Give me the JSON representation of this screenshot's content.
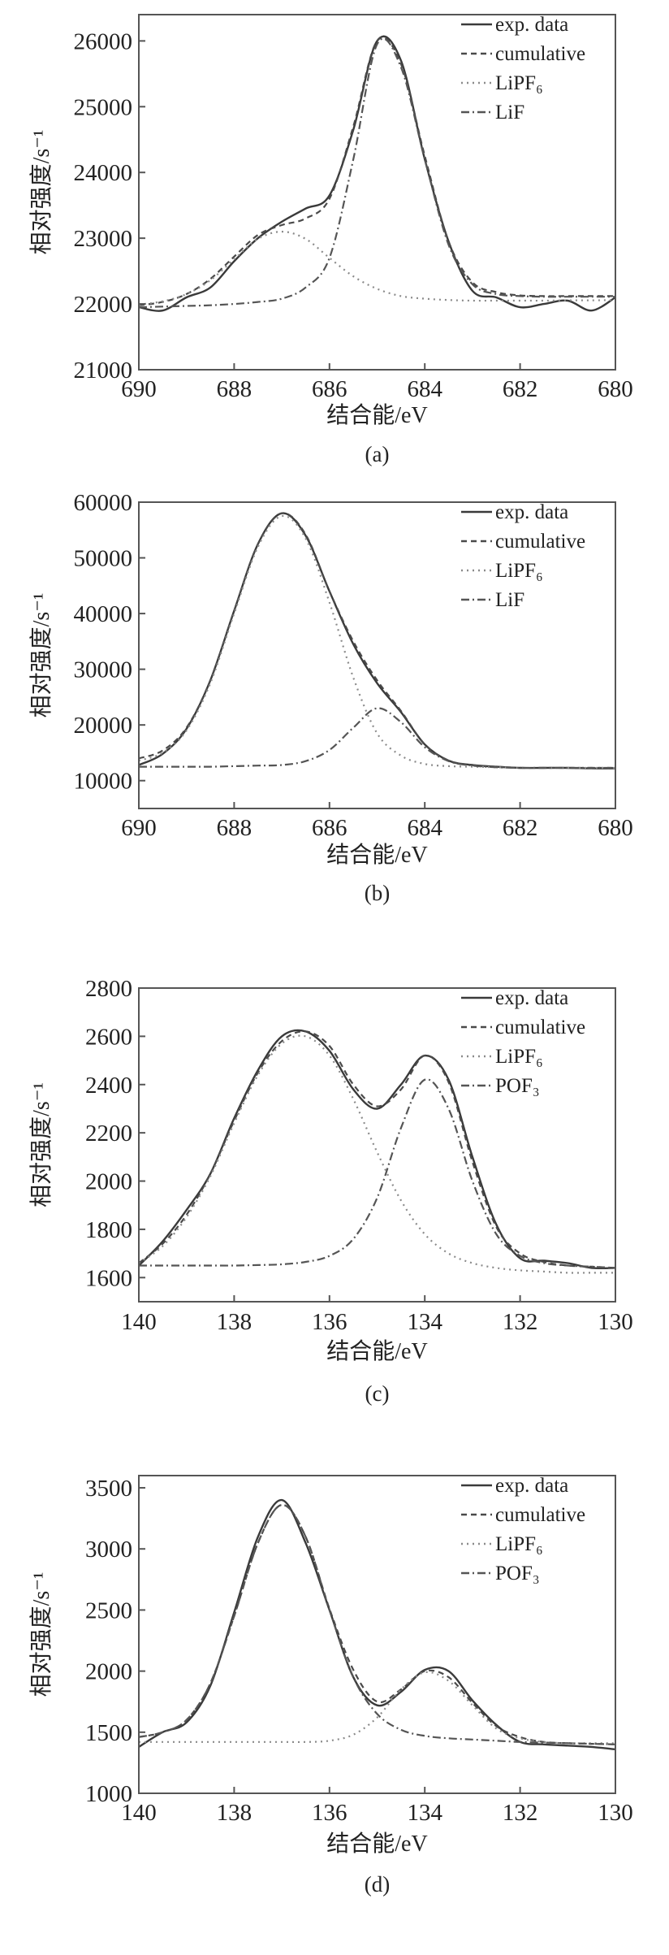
{
  "chart_data": [
    {
      "type": "line",
      "caption": "(a)",
      "xlabel": "结合能/eV",
      "ylabel": "相对强度/s⁻¹",
      "xlim": [
        690,
        680
      ],
      "ylim": [
        21000,
        26400
      ],
      "xticks": [
        690,
        688,
        686,
        684,
        682,
        680
      ],
      "yticks": [
        21000,
        22000,
        23000,
        24000,
        25000,
        26000
      ],
      "grid": false,
      "legend_position": "top-right",
      "x": [
        690,
        689.5,
        689,
        688.5,
        688,
        687.5,
        687,
        686.5,
        686,
        685.5,
        685,
        684.5,
        684,
        683.5,
        683,
        682.5,
        682,
        681.5,
        681,
        680.5,
        680
      ],
      "series": [
        {
          "name": "exp. data",
          "style": "solid",
          "values": [
            21950,
            21900,
            22100,
            22250,
            22650,
            23000,
            23250,
            23450,
            23650,
            24650,
            26000,
            25700,
            24200,
            22950,
            22200,
            22100,
            21950,
            22000,
            22050,
            21900,
            22100
          ]
        },
        {
          "name": "cumulative",
          "style": "dashed",
          "values": [
            21980,
            22030,
            22150,
            22380,
            22720,
            23050,
            23200,
            23300,
            23600,
            24700,
            26000,
            25650,
            24250,
            22950,
            22330,
            22180,
            22130,
            22120,
            22120,
            22120,
            22120
          ]
        },
        {
          "name": "LiPF₆",
          "style": "dotted",
          "values": [
            21990,
            22040,
            22150,
            22360,
            22680,
            22990,
            23100,
            22990,
            22700,
            22420,
            22230,
            22120,
            22080,
            22060,
            22050,
            22050,
            22050,
            22050,
            22055,
            22055,
            22060
          ]
        },
        {
          "name": "LiF",
          "style": "dashdot",
          "values": [
            21950,
            21960,
            21970,
            21980,
            22000,
            22030,
            22080,
            22250,
            22700,
            24200,
            25950,
            25600,
            24200,
            22900,
            22300,
            22150,
            22120,
            22110,
            22110,
            22110,
            22110
          ]
        }
      ]
    },
    {
      "type": "line",
      "caption": "(b)",
      "xlabel": "结合能/eV",
      "ylabel": "相对强度/s⁻¹",
      "xlim": [
        690,
        680
      ],
      "ylim": [
        5000,
        60000
      ],
      "xticks": [
        690,
        688,
        686,
        684,
        682,
        680
      ],
      "yticks": [
        10000,
        20000,
        30000,
        40000,
        50000,
        60000
      ],
      "grid": false,
      "legend_position": "top-right",
      "x": [
        690,
        689.5,
        689,
        688.5,
        688,
        687.5,
        687,
        686.5,
        686,
        685.5,
        685,
        684.5,
        684,
        683.5,
        683,
        682.5,
        682,
        681.5,
        681,
        680.5,
        680
      ],
      "series": [
        {
          "name": "exp. data",
          "style": "solid",
          "values": [
            12800,
            14800,
            19300,
            28000,
            40500,
            52500,
            58000,
            54000,
            44000,
            34500,
            27500,
            22300,
            16500,
            13600,
            12800,
            12500,
            12300,
            12300,
            12300,
            12200,
            12200
          ]
        },
        {
          "name": "cumulative",
          "style": "dashed",
          "values": [
            14000,
            15400,
            19500,
            28000,
            40500,
            52500,
            58000,
            54200,
            44000,
            35000,
            28000,
            22500,
            16500,
            13600,
            12800,
            12500,
            12300,
            12300,
            12300,
            12300,
            12300
          ]
        },
        {
          "name": "LiPF₆",
          "style": "dotted",
          "values": [
            13600,
            15000,
            19000,
            27500,
            40000,
            52000,
            57500,
            53500,
            42000,
            28500,
            18500,
            14500,
            13000,
            12600,
            12500,
            12400,
            12300,
            12300,
            12300,
            12300,
            12300
          ]
        },
        {
          "name": "LiF",
          "style": "dashdot",
          "values": [
            12500,
            12500,
            12500,
            12500,
            12600,
            12700,
            12800,
            13500,
            15500,
            19500,
            23000,
            20500,
            16000,
            13500,
            12700,
            12400,
            12300,
            12300,
            12300,
            12300,
            12300
          ]
        }
      ]
    },
    {
      "type": "line",
      "caption": "(c)",
      "xlabel": "结合能/eV",
      "ylabel": "相对强度/s⁻¹",
      "xlim": [
        140,
        130
      ],
      "ylim": [
        1500,
        2800
      ],
      "xticks": [
        140,
        138,
        136,
        134,
        132,
        130
      ],
      "yticks": [
        1600,
        1800,
        2000,
        2200,
        2400,
        2600,
        2800
      ],
      "grid": false,
      "legend_position": "top-right",
      "x": [
        140,
        139.5,
        139,
        138.5,
        138,
        137.5,
        137,
        136.5,
        136,
        135.5,
        135,
        134.5,
        134,
        133.5,
        133,
        132.5,
        132,
        131.5,
        131,
        130.5,
        130
      ],
      "series": [
        {
          "name": "exp. data",
          "style": "solid",
          "values": [
            1650,
            1750,
            1880,
            2030,
            2260,
            2460,
            2600,
            2620,
            2540,
            2380,
            2300,
            2400,
            2520,
            2420,
            2100,
            1820,
            1680,
            1670,
            1660,
            1640,
            1640
          ]
        },
        {
          "name": "cumulative",
          "style": "dashed",
          "values": [
            1660,
            1740,
            1860,
            2030,
            2250,
            2450,
            2580,
            2620,
            2560,
            2400,
            2310,
            2380,
            2520,
            2410,
            2080,
            1810,
            1700,
            1665,
            1650,
            1645,
            1640
          ]
        },
        {
          "name": "LiPF₆",
          "style": "dotted",
          "values": [
            1660,
            1730,
            1850,
            2020,
            2240,
            2440,
            2570,
            2600,
            2520,
            2340,
            2120,
            1920,
            1780,
            1700,
            1660,
            1640,
            1630,
            1625,
            1620,
            1620,
            1620
          ]
        },
        {
          "name": "POF₃",
          "style": "dashdot",
          "values": [
            1650,
            1650,
            1650,
            1650,
            1650,
            1652,
            1655,
            1665,
            1690,
            1760,
            1930,
            2220,
            2420,
            2300,
            2000,
            1780,
            1690,
            1660,
            1650,
            1645,
            1640
          ]
        }
      ]
    },
    {
      "type": "line",
      "caption": "(d)",
      "xlabel": "结合能/eV",
      "ylabel": "相对强度/s⁻¹",
      "xlim": [
        140,
        130
      ],
      "ylim": [
        1000,
        3600
      ],
      "xticks": [
        140,
        138,
        136,
        134,
        132,
        130
      ],
      "yticks": [
        1000,
        1500,
        2000,
        2500,
        3000,
        3500
      ],
      "grid": false,
      "legend_position": "top-right",
      "x": [
        140,
        139.5,
        139,
        138.5,
        138,
        137.5,
        137,
        136.5,
        136,
        135.5,
        135,
        134.5,
        134,
        133.5,
        133,
        132.5,
        132,
        131.5,
        131,
        130.5,
        130
      ],
      "series": [
        {
          "name": "exp. data",
          "style": "solid",
          "values": [
            1380,
            1500,
            1580,
            1880,
            2480,
            3100,
            3400,
            3050,
            2500,
            1950,
            1720,
            1830,
            2010,
            2000,
            1760,
            1560,
            1420,
            1400,
            1390,
            1380,
            1360
          ]
        },
        {
          "name": "cumulative",
          "style": "dashed",
          "values": [
            1460,
            1500,
            1600,
            1900,
            2450,
            3050,
            3360,
            3100,
            2510,
            2010,
            1750,
            1850,
            2000,
            1950,
            1740,
            1550,
            1460,
            1420,
            1410,
            1405,
            1400
          ]
        },
        {
          "name": "LiPF₆",
          "style": "dotted",
          "values": [
            1420,
            1420,
            1420,
            1420,
            1420,
            1420,
            1420,
            1420,
            1430,
            1480,
            1620,
            1850,
            1990,
            1920,
            1720,
            1530,
            1450,
            1420,
            1410,
            1410,
            1410
          ]
        },
        {
          "name": "POF₃",
          "style": "dashdot",
          "values": [
            1460,
            1500,
            1600,
            1900,
            2450,
            3050,
            3360,
            3100,
            2500,
            1950,
            1650,
            1520,
            1470,
            1450,
            1440,
            1430,
            1420,
            1415,
            1410,
            1405,
            1400
          ]
        }
      ]
    }
  ],
  "colors": {
    "solid": "#3a3a3a",
    "dashed": "#4a4a4a",
    "dotted": "#8a8a8a",
    "dashdot": "#555555"
  }
}
